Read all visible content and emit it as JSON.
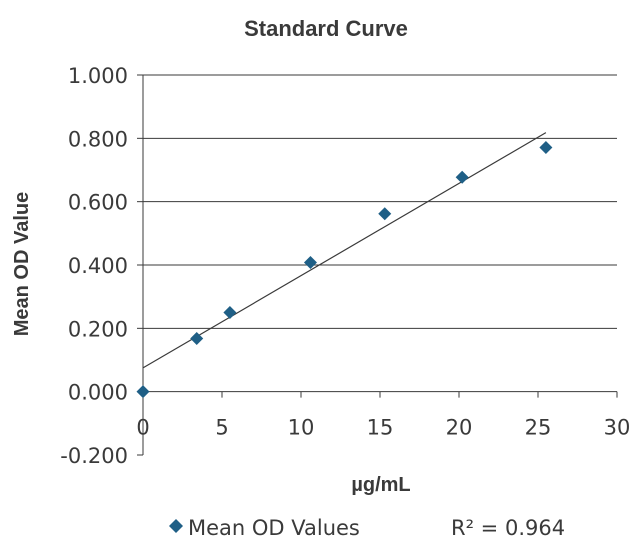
{
  "chart_data": {
    "type": "scatter",
    "title": "Standard Curve",
    "xlabel": "µg/mL",
    "ylabel": "Mean OD Value",
    "xlim": [
      0,
      30
    ],
    "ylim": [
      -0.2,
      1.0
    ],
    "x_ticks": [
      "0",
      "5",
      "10",
      "15",
      "20",
      "25",
      "30"
    ],
    "y_ticks": [
      "-0.200",
      "0.000",
      "0.200",
      "0.400",
      "0.600",
      "0.800",
      "1.000"
    ],
    "grid": "horizontal",
    "legend_position": "bottom",
    "series": [
      {
        "name": "Mean OD Values",
        "marker": "diamond",
        "color": "#1f5f86",
        "x": [
          0,
          3.4,
          5.5,
          10.6,
          15.3,
          20.2,
          25.5
        ],
        "y": [
          0.0,
          0.168,
          0.25,
          0.408,
          0.562,
          0.677,
          0.771
        ]
      }
    ],
    "trendline": {
      "type": "linear",
      "from": [
        0,
        0.075
      ],
      "to": [
        25.5,
        0.818
      ],
      "color": "#3a3a3a"
    },
    "r_squared_label": "R² = 0.964"
  }
}
